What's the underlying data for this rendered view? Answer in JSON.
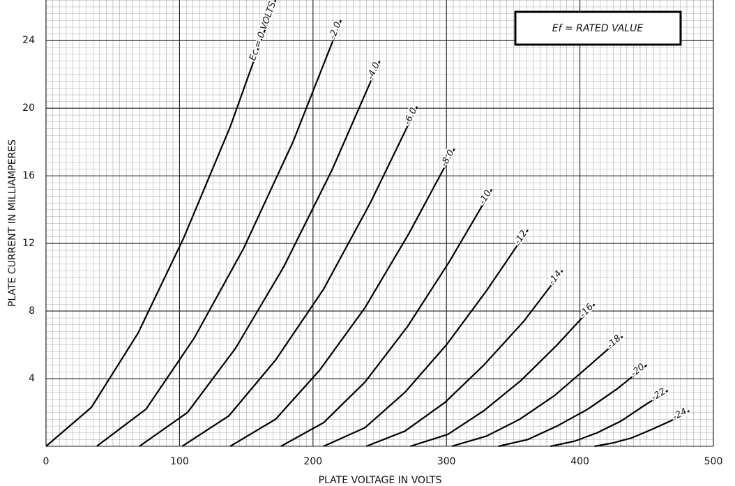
{
  "chart_data": {
    "type": "line",
    "xlabel": "PLATE VOLTAGE IN VOLTS",
    "ylabel": "PLATE CURRENT IN MILLIAMPERES",
    "annotation": "Ef = RATED VALUE",
    "xlim": [
      0,
      500
    ],
    "ylim": [
      0,
      26.4
    ],
    "xticks": [
      0,
      100,
      200,
      300,
      400,
      500
    ],
    "yticks": [
      4,
      8,
      12,
      16,
      20,
      24
    ],
    "grid": true,
    "series": [
      {
        "name": "Ec = 0 VOLTS",
        "color": "#000000",
        "x": [
          0,
          34,
          69,
          103,
          138,
          172
        ],
        "values": [
          0,
          2.3,
          6.7,
          12.3,
          18.9,
          26.4
        ]
      },
      {
        "name": "-2.0",
        "color": "#000000",
        "x": [
          38,
          75,
          111,
          148,
          185,
          221
        ],
        "values": [
          0,
          2.2,
          6.4,
          11.7,
          18.0,
          25.2
        ]
      },
      {
        "name": "-4.0",
        "color": "#000000",
        "x": [
          70,
          106,
          142,
          178,
          214,
          250
        ],
        "values": [
          0,
          2.0,
          5.8,
          10.6,
          16.3,
          22.8
        ]
      },
      {
        "name": "-6.0",
        "color": "#000000",
        "x": [
          102,
          137,
          172,
          208,
          243,
          278
        ],
        "values": [
          0,
          1.8,
          5.1,
          9.3,
          14.4,
          20.1
        ]
      },
      {
        "name": "-8.0",
        "color": "#000000",
        "x": [
          138,
          172,
          205,
          239,
          272,
          306
        ],
        "values": [
          0,
          1.6,
          4.5,
          8.2,
          12.6,
          17.6
        ]
      },
      {
        "name": "-10",
        "color": "#000000",
        "x": [
          176,
          208,
          239,
          271,
          302,
          334
        ],
        "values": [
          0,
          1.4,
          3.8,
          7.1,
          10.9,
          15.2
        ]
      },
      {
        "name": "-12",
        "color": "#000000",
        "x": [
          208,
          239,
          269,
          300,
          330,
          361
        ],
        "values": [
          0,
          1.1,
          3.2,
          6.0,
          9.2,
          12.8
        ]
      },
      {
        "name": "-14",
        "color": "#000000",
        "x": [
          240,
          269,
          299,
          328,
          358,
          387
        ],
        "values": [
          0,
          0.9,
          2.6,
          4.8,
          7.4,
          10.4
        ]
      },
      {
        "name": "-16",
        "color": "#000000",
        "x": [
          273,
          301,
          328,
          356,
          383,
          411
        ],
        "values": [
          0,
          0.7,
          2.1,
          3.9,
          6.0,
          8.4
        ]
      },
      {
        "name": "-18",
        "color": "#000000",
        "x": [
          304,
          330,
          355,
          381,
          406,
          432
        ],
        "values": [
          0,
          0.6,
          1.6,
          3.0,
          4.7,
          6.5
        ]
      },
      {
        "name": "-20",
        "color": "#000000",
        "x": [
          339,
          361,
          383,
          406,
          428,
          450
        ],
        "values": [
          0,
          0.4,
          1.2,
          2.2,
          3.4,
          4.8
        ]
      },
      {
        "name": "-22",
        "color": "#000000",
        "x": [
          378,
          396,
          413,
          431,
          448,
          466
        ],
        "values": [
          0,
          0.3,
          0.8,
          1.5,
          2.4,
          3.3
        ]
      },
      {
        "name": "-24",
        "color": "#000000",
        "x": [
          411,
          425,
          439,
          454,
          468,
          482
        ],
        "values": [
          0,
          0.2,
          0.5,
          1.0,
          1.5,
          2.1
        ]
      }
    ]
  }
}
